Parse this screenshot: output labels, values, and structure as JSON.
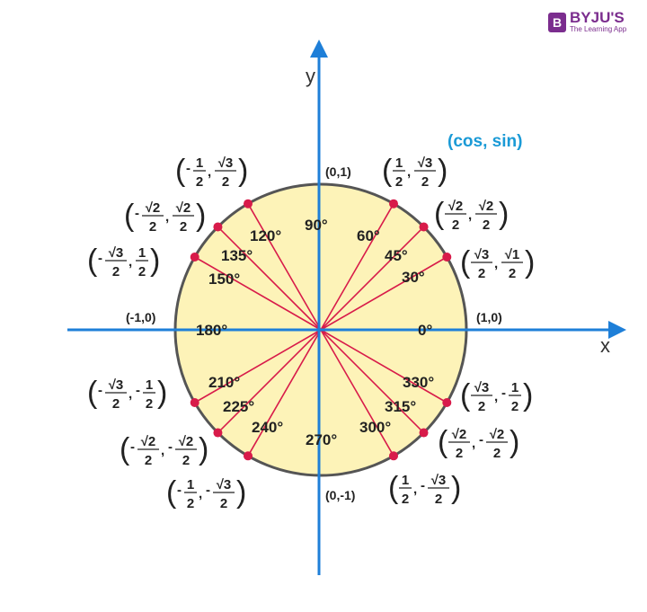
{
  "logo": {
    "mark": "B",
    "name": "BYJU'S",
    "tagline": "The Learning App"
  },
  "legend": "(cos, sin)",
  "axes": {
    "x_label": "x",
    "y_label": "y"
  },
  "axis_points": [
    {
      "label": "(0,1)"
    },
    {
      "label": "(-1,0)"
    },
    {
      "label": "(1,0)"
    },
    {
      "label": "(0,-1)"
    }
  ],
  "angles": [
    {
      "deg": 0,
      "label": "0°"
    },
    {
      "deg": 30,
      "label": "30°",
      "cos": "√3/2",
      "sin": "√1/2"
    },
    {
      "deg": 45,
      "label": "45°",
      "cos": "√2/2",
      "sin": "√2/2"
    },
    {
      "deg": 60,
      "label": "60°",
      "cos": "1/2",
      "sin": "√3/2"
    },
    {
      "deg": 90,
      "label": "90°"
    },
    {
      "deg": 120,
      "label": "120°",
      "cos": "-1/2",
      "sin": "√3/2"
    },
    {
      "deg": 135,
      "label": "135°",
      "cos": "-√2/2",
      "sin": "√2/2"
    },
    {
      "deg": 150,
      "label": "150°",
      "cos": "-√3/2",
      "sin": "1/2"
    },
    {
      "deg": 180,
      "label": "180°"
    },
    {
      "deg": 210,
      "label": "210°",
      "cos": "-√3/2",
      "sin": "-1/2"
    },
    {
      "deg": 225,
      "label": "225°",
      "cos": "-√2/2",
      "sin": "-√2/2"
    },
    {
      "deg": 240,
      "label": "240°",
      "cos": "-1/2",
      "sin": "-√3/2"
    },
    {
      "deg": 270,
      "label": "270°"
    },
    {
      "deg": 300,
      "label": "300°",
      "cos": "1/2",
      "sin": "-√3/2"
    },
    {
      "deg": 315,
      "label": "315°",
      "cos": "√2/2",
      "sin": "-√2/2"
    },
    {
      "deg": 330,
      "label": "330°",
      "cos": "√3/2",
      "sin": "-1/2"
    }
  ],
  "colors": {
    "axis": "#1e7fd8",
    "ray": "#d81b4a",
    "circle_fill": "#fdf3b8",
    "circle_stroke": "#555555",
    "legend": "#1a9ad6",
    "brand": "#7b2d8e"
  }
}
